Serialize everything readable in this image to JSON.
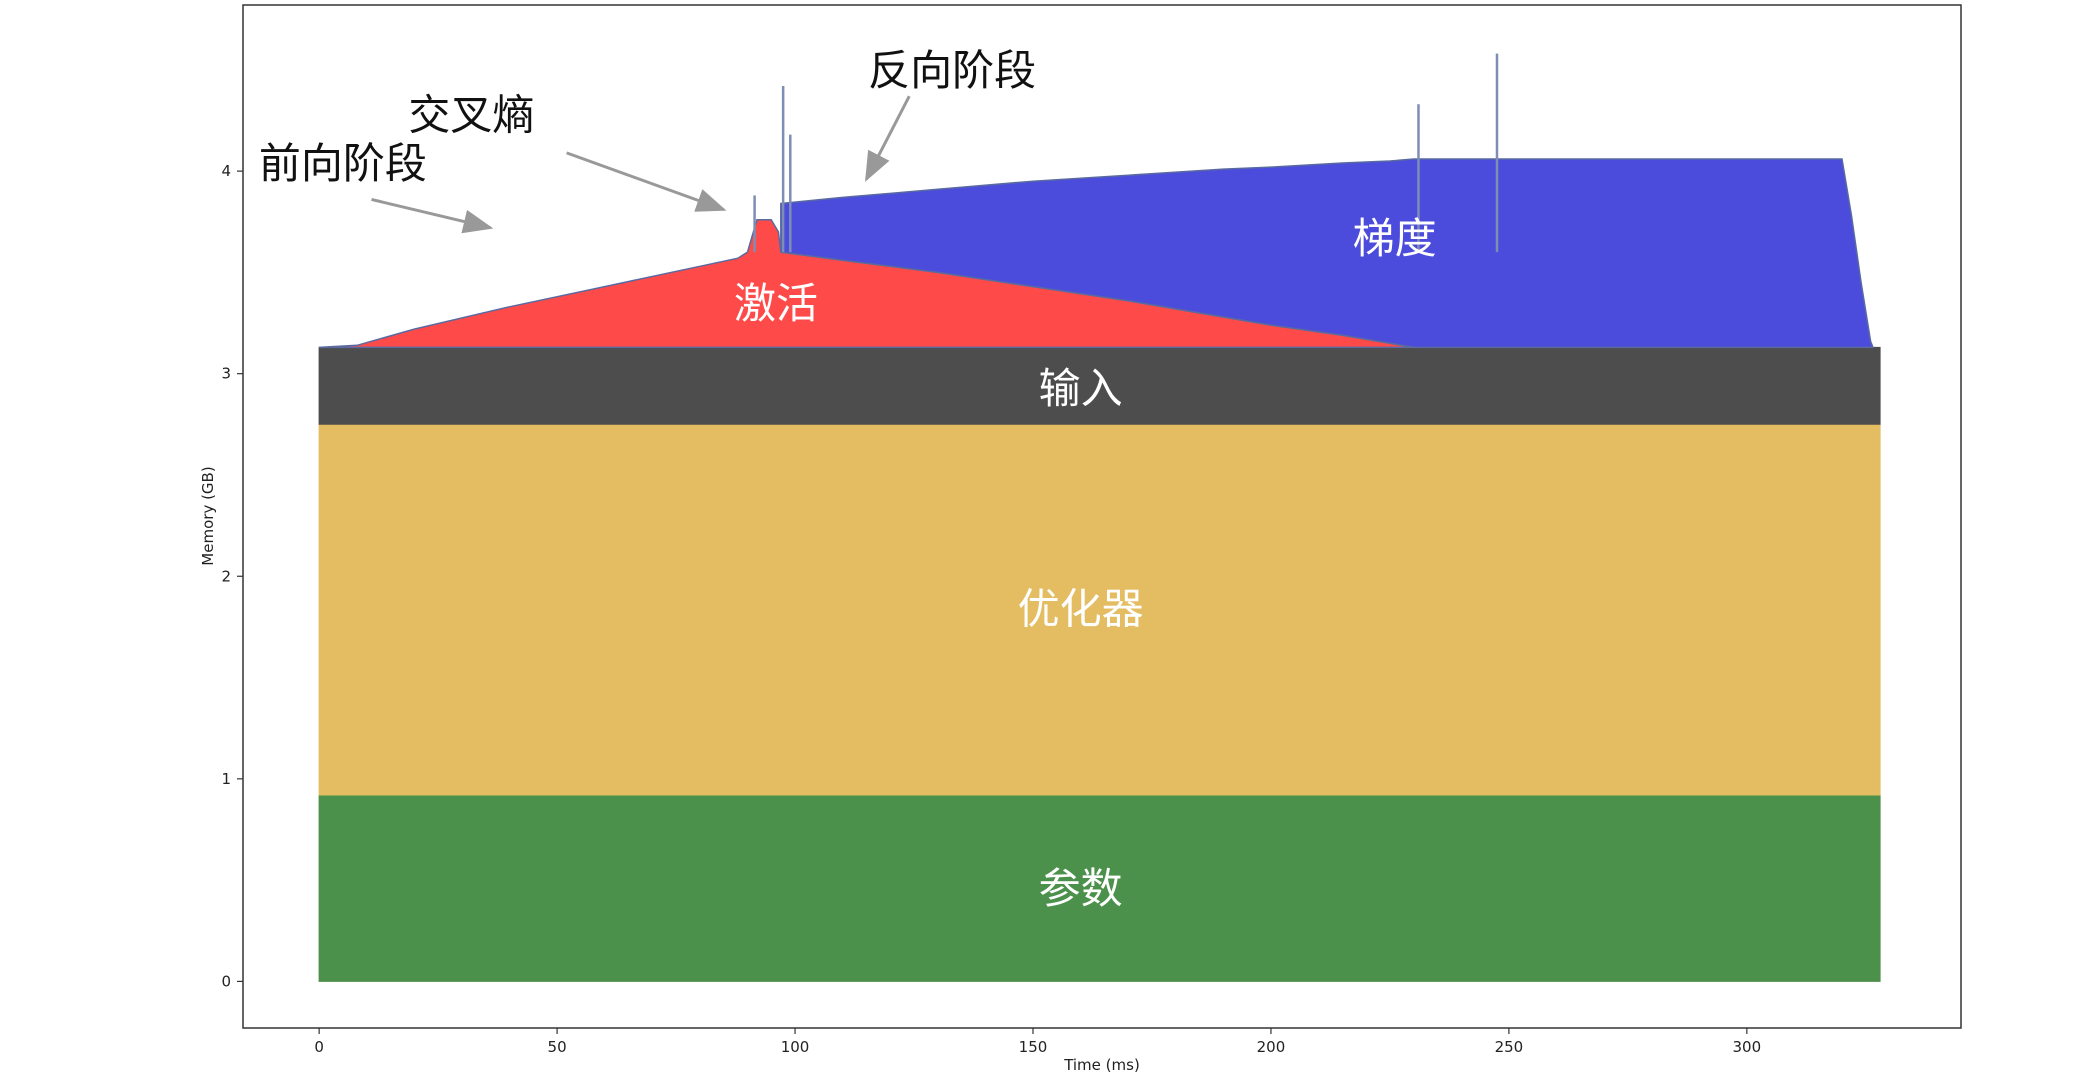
{
  "chart_data": {
    "type": "area",
    "title": "",
    "xlabel": "Time (ms)",
    "ylabel": "Memory (GB)",
    "xlim": [
      -16,
      345
    ],
    "ylim": [
      -0.23,
      4.82
    ],
    "x_ticks": [
      0,
      50,
      100,
      150,
      200,
      250,
      300
    ],
    "y_ticks": [
      0,
      1,
      2,
      3,
      4
    ],
    "grid": false,
    "legend": "none",
    "series": [
      {
        "name": "参数",
        "color": "#4c914b",
        "x": [
          0,
          328
        ],
        "lower": [
          0,
          0
        ],
        "upper": [
          0.92,
          0.92
        ]
      },
      {
        "name": "优化器",
        "color": "#e4bd62",
        "x": [
          0,
          328
        ],
        "lower": [
          0.92,
          0.92
        ],
        "upper": [
          2.75,
          2.75
        ]
      },
      {
        "name": "输入",
        "color": "#4d4d4d",
        "x": [
          0,
          328
        ],
        "lower": [
          2.75,
          2.75
        ],
        "upper": [
          3.13,
          3.13
        ]
      },
      {
        "name": "激活",
        "color": "#ff4a4a",
        "x": [
          0,
          8,
          20,
          40,
          60,
          80,
          88,
          90,
          91,
          92,
          95,
          96.5,
          97,
          110,
          130,
          150,
          170,
          190,
          200,
          215,
          225,
          230
        ],
        "lower": [
          3.13,
          3.13,
          3.13,
          3.13,
          3.13,
          3.13,
          3.13,
          3.13,
          3.13,
          3.13,
          3.13,
          3.13,
          3.13,
          3.13,
          3.13,
          3.13,
          3.13,
          3.13,
          3.13,
          3.13,
          3.13,
          3.13
        ],
        "upper": [
          3.13,
          3.14,
          3.22,
          3.33,
          3.43,
          3.53,
          3.57,
          3.6,
          3.68,
          3.76,
          3.76,
          3.7,
          3.6,
          3.56,
          3.5,
          3.43,
          3.36,
          3.28,
          3.24,
          3.19,
          3.15,
          3.13
        ]
      },
      {
        "name": "梯度",
        "color": "#4b4bdc",
        "x": [
          97,
          110,
          130,
          150,
          170,
          190,
          200,
          215,
          225,
          230,
          240,
          250,
          270,
          290,
          320,
          322,
          324,
          326,
          326.5
        ],
        "lower": [
          3.6,
          3.56,
          3.5,
          3.43,
          3.36,
          3.28,
          3.24,
          3.19,
          3.15,
          3.13,
          3.13,
          3.13,
          3.13,
          3.13,
          3.13,
          3.13,
          3.13,
          3.13,
          3.13
        ],
        "upper": [
          3.84,
          3.87,
          3.91,
          3.95,
          3.98,
          4.01,
          4.02,
          4.04,
          4.05,
          4.06,
          4.06,
          4.06,
          4.06,
          4.06,
          4.06,
          3.78,
          3.45,
          3.16,
          3.13
        ]
      }
    ],
    "spikes": [
      {
        "x": 91.5,
        "y": 3.88
      },
      {
        "x": 97.5,
        "y": 4.42
      },
      {
        "x": 99,
        "y": 4.18
      },
      {
        "x": 231,
        "y": 4.33
      },
      {
        "x": 247.5,
        "y": 4.58
      }
    ],
    "annotations": [
      {
        "text": "前向阶段",
        "text_x": 5,
        "text_y": 4.04,
        "arrow_from": [
          11,
          3.86
        ],
        "arrow_to": [
          36,
          3.72
        ]
      },
      {
        "text": "交叉熵",
        "text_x": 32,
        "text_y": 4.28,
        "arrow_from": [
          52,
          4.09
        ],
        "arrow_to": [
          85,
          3.81
        ]
      },
      {
        "text": "反向阶段",
        "text_x": 133,
        "text_y": 4.5,
        "arrow_from": [
          124,
          4.37
        ],
        "arrow_to": [
          115,
          3.96
        ]
      }
    ],
    "region_labels": [
      {
        "text": "参数",
        "x": 160,
        "y": 0.46
      },
      {
        "text": "优化器",
        "x": 160,
        "y": 1.84
      },
      {
        "text": "输入",
        "x": 160,
        "y": 2.93
      },
      {
        "text": "激活",
        "x": 96,
        "y": 3.35
      },
      {
        "text": "梯度",
        "x": 226,
        "y": 3.67
      }
    ]
  }
}
